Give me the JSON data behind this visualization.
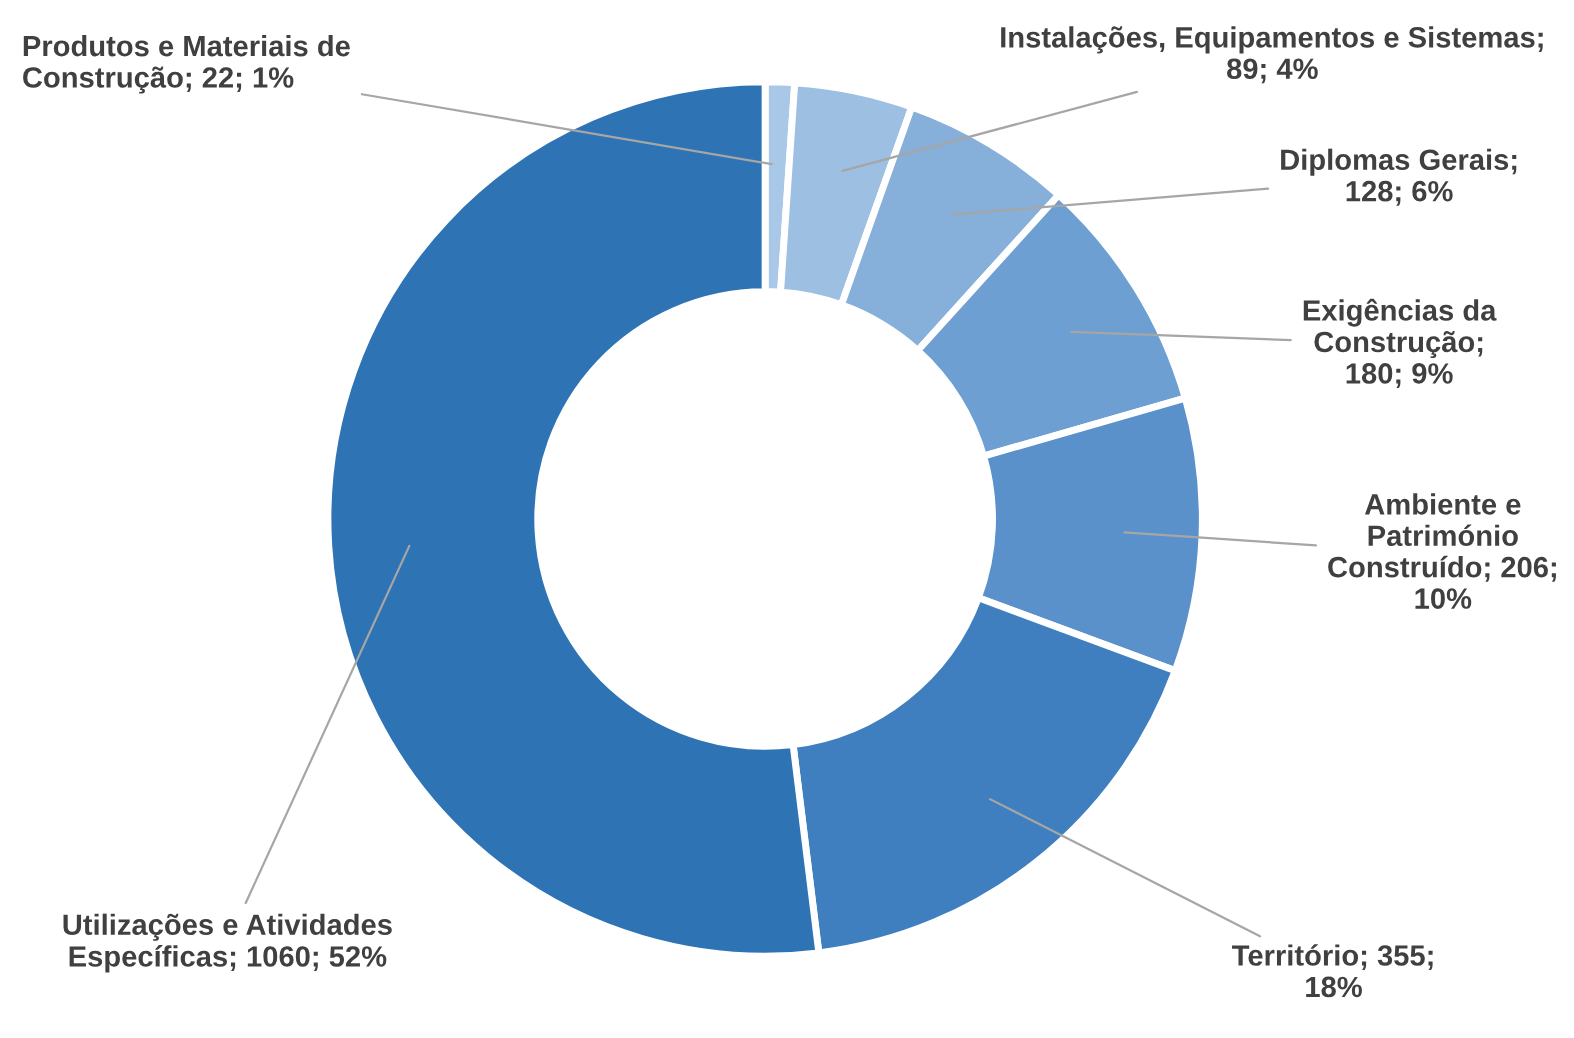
{
  "chart_data": {
    "type": "donut",
    "categories": [
      "Produtos e Materiais de Construção; 22; 1%",
      "Instalações, Equipamentos e Sistemas; 89; 4%",
      "Diplomas Gerais; 128; 6%",
      "Exigências da Construção; 180; 9%",
      "Ambiente e Património Construído; 206; 10%",
      "Território; 355; 18%",
      "Utilizações e Atividades Específicas; 1060; 52%"
    ],
    "values": [
      22,
      89,
      128,
      180,
      206,
      355,
      1060
    ],
    "colors": [
      "#a9c8e8",
      "#9cbfe2",
      "#86afda",
      "#6e9fd2",
      "#5a91ca",
      "#3f7fc0",
      "#2e74b5"
    ],
    "legend": false
  }
}
